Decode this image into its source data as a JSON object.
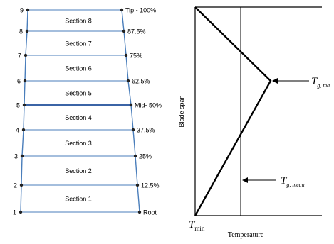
{
  "blade": {
    "stations": [
      {
        "num": "1",
        "pct": "Root"
      },
      {
        "num": "2",
        "pct": "12.5%"
      },
      {
        "num": "3",
        "pct": "25%"
      },
      {
        "num": "4",
        "pct": "37.5%"
      },
      {
        "num": "5",
        "pct": "Mid- 50%"
      },
      {
        "num": "6",
        "pct": "62.5%"
      },
      {
        "num": "7",
        "pct": "75%"
      },
      {
        "num": "8",
        "pct": "87.5%"
      },
      {
        "num": "9",
        "pct": "Tip - 100%"
      }
    ],
    "sections": [
      "Section 1",
      "Section 2",
      "Section 3",
      "Section 4",
      "Section 5",
      "Section 6",
      "Section 7",
      "Section 8"
    ],
    "line_color": "#4a7ebb",
    "highlight_color": "#1f4e9a"
  },
  "profile": {
    "ylabel": "Blade span",
    "xlabel": "Temperature",
    "t_max": {
      "sym": "T",
      "sub": "g, ma"
    },
    "t_mean": {
      "sym": "T",
      "sub": "g, mean"
    },
    "t_min": {
      "sym": "T",
      "sub": "min"
    }
  }
}
